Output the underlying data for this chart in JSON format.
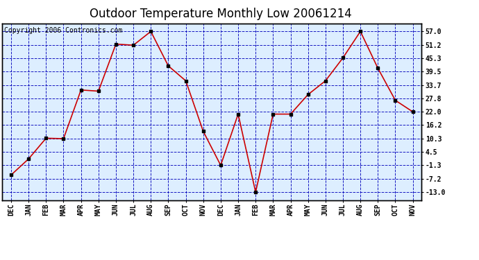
{
  "title": "Outdoor Temperature Monthly Low 20061214",
  "copyright": "Copyright 2006 Contronics.com",
  "x_labels": [
    "DEC",
    "JAN",
    "FEB",
    "MAR",
    "APR",
    "MAY",
    "JUN",
    "JUL",
    "AUG",
    "SEP",
    "OCT",
    "NOV",
    "DEC",
    "JAN",
    "FEB",
    "MAR",
    "APR",
    "MAY",
    "JUN",
    "JUL",
    "AUG",
    "SEP",
    "OCT",
    "NOV"
  ],
  "y_values": [
    -5.5,
    1.5,
    10.5,
    10.3,
    31.5,
    31.0,
    51.5,
    51.0,
    57.0,
    42.0,
    35.5,
    13.5,
    -1.3,
    21.0,
    -13.0,
    21.0,
    21.0,
    29.5,
    35.5,
    45.5,
    57.0,
    41.0,
    27.0,
    22.0
  ],
  "y_ticks": [
    -13.0,
    -7.2,
    -1.3,
    4.5,
    10.3,
    16.2,
    22.0,
    27.8,
    33.7,
    39.5,
    45.3,
    51.2,
    57.0
  ],
  "ylim": [
    -16.5,
    60.5
  ],
  "line_color": "#cc0000",
  "marker_color": "#000000",
  "grid_color": "#0000bb",
  "background_color": "#ddeeff",
  "fig_background": "#ffffff",
  "title_fontsize": 12,
  "tick_fontsize": 7,
  "copyright_fontsize": 7
}
